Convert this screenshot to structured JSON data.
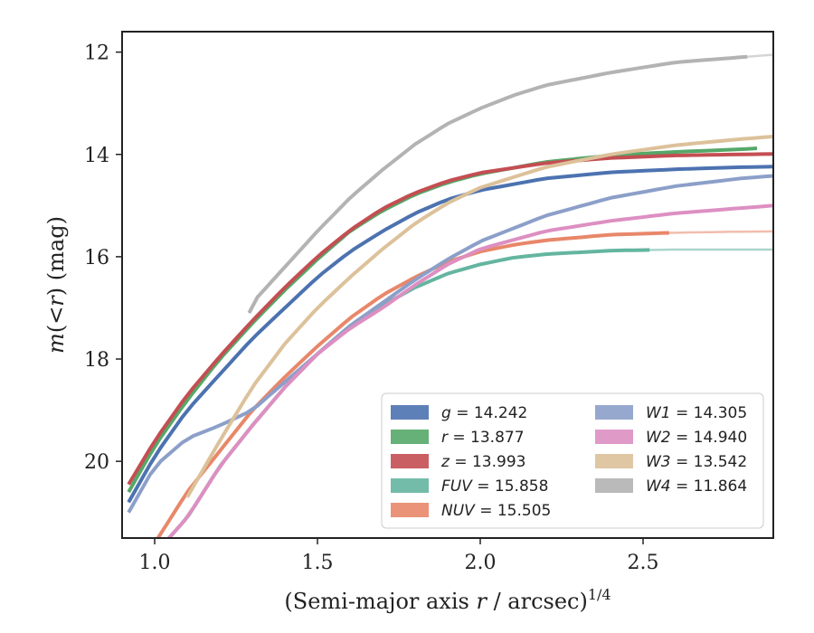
{
  "chart_data": {
    "type": "line",
    "title": "",
    "xlabel_main": "(Semi-major axis ",
    "xlabel_var": "r",
    "xlabel_tail": " / arcsec)",
    "xlabel_sup": "1/4",
    "ylabel_var_m": "m",
    "ylabel_paren": "(<",
    "ylabel_var_r": "r",
    "ylabel_tail": ") (mag)",
    "xlim": [
      0.9,
      2.9
    ],
    "ylim": [
      21.5,
      11.6
    ],
    "y_inverted": true,
    "x_ticks": [
      1.0,
      1.5,
      2.0,
      2.5
    ],
    "x_tick_labels": [
      "1.0",
      "1.5",
      "2.0",
      "2.5"
    ],
    "y_ticks": [
      12,
      14,
      16,
      18,
      20
    ],
    "y_tick_labels": [
      "12",
      "14",
      "16",
      "18",
      "20"
    ],
    "grid": false,
    "legend_position": "lower-right",
    "legend_columns": 2,
    "series": [
      {
        "name": "g",
        "label_value": "= 14.242",
        "color": "#4c72b0",
        "band_end": 2.9,
        "x_start": 0.92,
        "x": [
          0.92,
          1.0,
          1.1,
          1.2,
          1.3,
          1.4,
          1.5,
          1.6,
          1.7,
          1.8,
          1.9,
          2.0,
          2.2,
          2.4,
          2.6,
          2.8,
          2.9
        ],
        "y": [
          20.8,
          19.9,
          19.0,
          18.3,
          17.6,
          17.0,
          16.4,
          15.9,
          15.5,
          15.15,
          14.88,
          14.7,
          14.47,
          14.35,
          14.29,
          14.25,
          14.24
        ]
      },
      {
        "name": "r",
        "label_value": "= 13.877",
        "color": "#55a868",
        "band_end": 2.85,
        "x_start": 0.92,
        "x": [
          0.92,
          1.0,
          1.1,
          1.2,
          1.3,
          1.4,
          1.5,
          1.6,
          1.7,
          1.8,
          1.9,
          2.0,
          2.2,
          2.4,
          2.6,
          2.8,
          2.85
        ],
        "y": [
          20.6,
          19.7,
          18.8,
          18.0,
          17.3,
          16.65,
          16.05,
          15.5,
          15.1,
          14.78,
          14.55,
          14.38,
          14.15,
          14.02,
          13.95,
          13.9,
          13.88
        ]
      },
      {
        "name": "z",
        "label_value": "= 13.993",
        "color": "#c44e52",
        "band_end": 2.9,
        "x_start": 0.92,
        "x": [
          0.92,
          1.0,
          1.1,
          1.2,
          1.3,
          1.4,
          1.5,
          1.6,
          1.7,
          1.8,
          1.9,
          2.0,
          2.2,
          2.4,
          2.6,
          2.8,
          2.9
        ],
        "y": [
          20.45,
          19.6,
          18.7,
          17.95,
          17.25,
          16.6,
          16.0,
          15.48,
          15.06,
          14.75,
          14.52,
          14.36,
          14.17,
          14.07,
          14.02,
          14.0,
          13.99
        ]
      },
      {
        "name": "FUV",
        "label_value": "= 15.858",
        "color": "#64b5a0",
        "band_end": 2.52,
        "x_start": 1.03,
        "x": [
          1.03,
          1.1,
          1.2,
          1.3,
          1.4,
          1.5,
          1.6,
          1.7,
          1.8,
          1.9,
          2.0,
          2.1,
          2.2,
          2.4,
          2.6,
          2.8,
          2.9
        ],
        "y": [
          21.6,
          21.1,
          20.1,
          19.3,
          18.55,
          17.9,
          17.35,
          16.95,
          16.6,
          16.33,
          16.15,
          16.02,
          15.95,
          15.88,
          15.86,
          15.86,
          15.86
        ]
      },
      {
        "name": "NUV",
        "label_value": "= 15.505",
        "color": "#e8876a",
        "band_end": 2.58,
        "x_start": 1.0,
        "x": [
          1.0,
          1.1,
          1.2,
          1.3,
          1.4,
          1.5,
          1.6,
          1.7,
          1.8,
          1.9,
          2.0,
          2.1,
          2.2,
          2.4,
          2.6,
          2.8,
          2.9
        ],
        "y": [
          21.6,
          20.6,
          19.8,
          19.0,
          18.35,
          17.75,
          17.2,
          16.75,
          16.4,
          16.1,
          15.9,
          15.77,
          15.68,
          15.57,
          15.53,
          15.51,
          15.505
        ]
      },
      {
        "name": "W1",
        "label_value": "= 14.305",
        "color": "#8c9fc9",
        "band_end": 2.9,
        "x_start": 0.92,
        "x": [
          0.92,
          1.0,
          1.1,
          1.2,
          1.3,
          1.4,
          1.5,
          1.6,
          1.7,
          1.8,
          1.9,
          2.0,
          2.2,
          2.4,
          2.6,
          2.8,
          2.9
        ],
        "y": [
          21.0,
          20.1,
          19.55,
          19.3,
          19.0,
          18.45,
          17.9,
          17.35,
          16.9,
          16.45,
          16.05,
          15.7,
          15.2,
          14.85,
          14.62,
          14.47,
          14.42
        ]
      },
      {
        "name": "W2",
        "label_value": "= 14.940",
        "color": "#dd8fc2",
        "band_end": 2.9,
        "x_start": 1.03,
        "x": [
          1.03,
          1.1,
          1.2,
          1.3,
          1.4,
          1.5,
          1.6,
          1.7,
          1.8,
          1.9,
          2.0,
          2.2,
          2.4,
          2.6,
          2.8,
          2.9
        ],
        "y": [
          21.6,
          21.1,
          20.1,
          19.3,
          18.55,
          17.9,
          17.4,
          17.0,
          16.55,
          16.15,
          15.85,
          15.5,
          15.3,
          15.15,
          15.05,
          15.0
        ]
      },
      {
        "name": "W3",
        "label_value": "= 13.542",
        "color": "#dcc19a",
        "band_end": 2.9,
        "x_start": 1.1,
        "x": [
          1.1,
          1.2,
          1.3,
          1.4,
          1.5,
          1.6,
          1.7,
          1.8,
          1.9,
          2.0,
          2.2,
          2.4,
          2.6,
          2.8,
          2.9
        ],
        "y": [
          20.7,
          19.6,
          18.55,
          17.7,
          17.0,
          16.4,
          15.85,
          15.35,
          14.95,
          14.65,
          14.25,
          14.0,
          13.82,
          13.7,
          13.65
        ]
      },
      {
        "name": "W4",
        "label_value": "= 11.864",
        "color": "#b3b3b3",
        "band_end": 2.82,
        "x_start": 1.29,
        "x": [
          1.29,
          1.3,
          1.4,
          1.5,
          1.6,
          1.7,
          1.8,
          1.9,
          2.0,
          2.1,
          2.2,
          2.4,
          2.6,
          2.8,
          2.9
        ],
        "y": [
          17.1,
          16.9,
          16.2,
          15.5,
          14.85,
          14.3,
          13.8,
          13.4,
          13.1,
          12.85,
          12.65,
          12.4,
          12.2,
          12.1,
          12.05
        ]
      }
    ]
  }
}
